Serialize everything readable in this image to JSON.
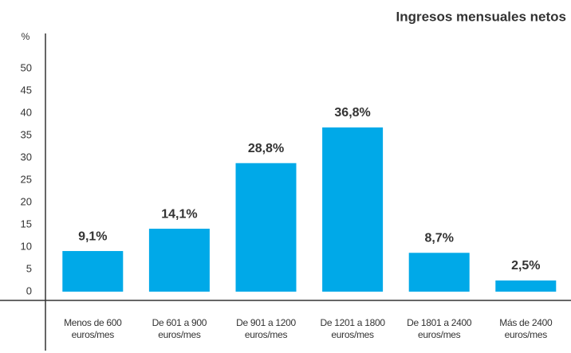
{
  "chart_data": {
    "type": "bar",
    "title": "Ingresos mensuales netos",
    "y_label": "%",
    "categories": [
      "Menos de 600 euros/mes",
      "De 601 a 900 euros/mes",
      "De 901 a 1200 euros/mes",
      "De 1201 a 1800 euros/mes",
      "De 1801 a 2400 euros/mes",
      "Más de 2400 euros/mes"
    ],
    "values": [
      9.1,
      14.1,
      28.8,
      36.8,
      8.7,
      2.5
    ],
    "value_labels": [
      "9,1%",
      "14,1%",
      "28,8%",
      "36,8%",
      "8,7%",
      "2,5%"
    ],
    "color": "#00a9e8",
    "ylim": [
      -2,
      57
    ],
    "yticks": [
      0,
      5,
      10,
      15,
      20,
      25,
      30,
      35,
      40,
      45,
      50
    ],
    "grid": false
  }
}
